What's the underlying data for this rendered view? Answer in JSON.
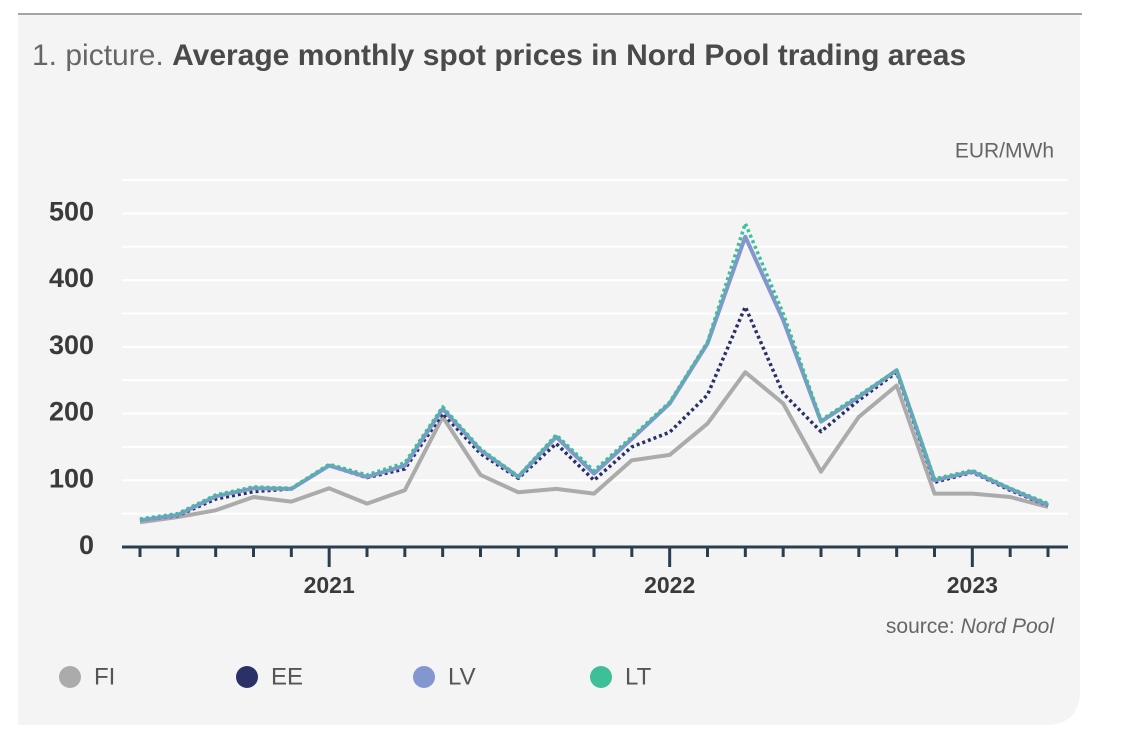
{
  "chart_data": {
    "type": "line",
    "title_label": "1. picture.",
    "title": "Average monthly spot prices in Nord Pool trading areas",
    "y_unit": "EUR/MWh",
    "source_label": "source:",
    "source": "Nord Pool",
    "categories": [
      null,
      null,
      null,
      null,
      null,
      "2021",
      null,
      null,
      null,
      null,
      null,
      null,
      null,
      null,
      "2022",
      null,
      null,
      null,
      null,
      null,
      null,
      null,
      "2023",
      null,
      null
    ],
    "ylim": [
      0,
      550
    ],
    "yticks": [
      0,
      100,
      200,
      300,
      400,
      500
    ],
    "minor_yticks": [
      50,
      150,
      250,
      350,
      450,
      550
    ],
    "grid": true,
    "legend": "bottom",
    "series": [
      {
        "name": "FI",
        "color": "#ababab",
        "dash": false,
        "values": [
          37,
          45,
          55,
          75,
          68,
          88,
          65,
          85,
          195,
          108,
          82,
          87,
          80,
          130,
          138,
          185,
          262,
          215,
          113,
          195,
          242,
          80,
          80,
          75,
          60
        ]
      },
      {
        "name": "EE",
        "color": "#2b3166",
        "dash": true,
        "values": [
          40,
          47,
          72,
          83,
          87,
          122,
          104,
          117,
          200,
          140,
          103,
          155,
          100,
          150,
          172,
          228,
          360,
          230,
          173,
          220,
          262,
          97,
          112,
          85,
          62
        ]
      },
      {
        "name": "LV",
        "color": "#8496cf",
        "dash": false,
        "values": [
          40,
          48,
          76,
          88,
          87,
          122,
          105,
          122,
          207,
          145,
          105,
          165,
          110,
          162,
          215,
          305,
          465,
          340,
          188,
          225,
          265,
          100,
          113,
          87,
          63
        ]
      },
      {
        "name": "LT",
        "color": "#3dbf98",
        "dash": true,
        "values": [
          42,
          50,
          78,
          90,
          88,
          124,
          108,
          126,
          210,
          147,
          106,
          168,
          114,
          165,
          217,
          307,
          485,
          350,
          190,
          227,
          265,
          102,
          115,
          88,
          65
        ]
      }
    ]
  }
}
